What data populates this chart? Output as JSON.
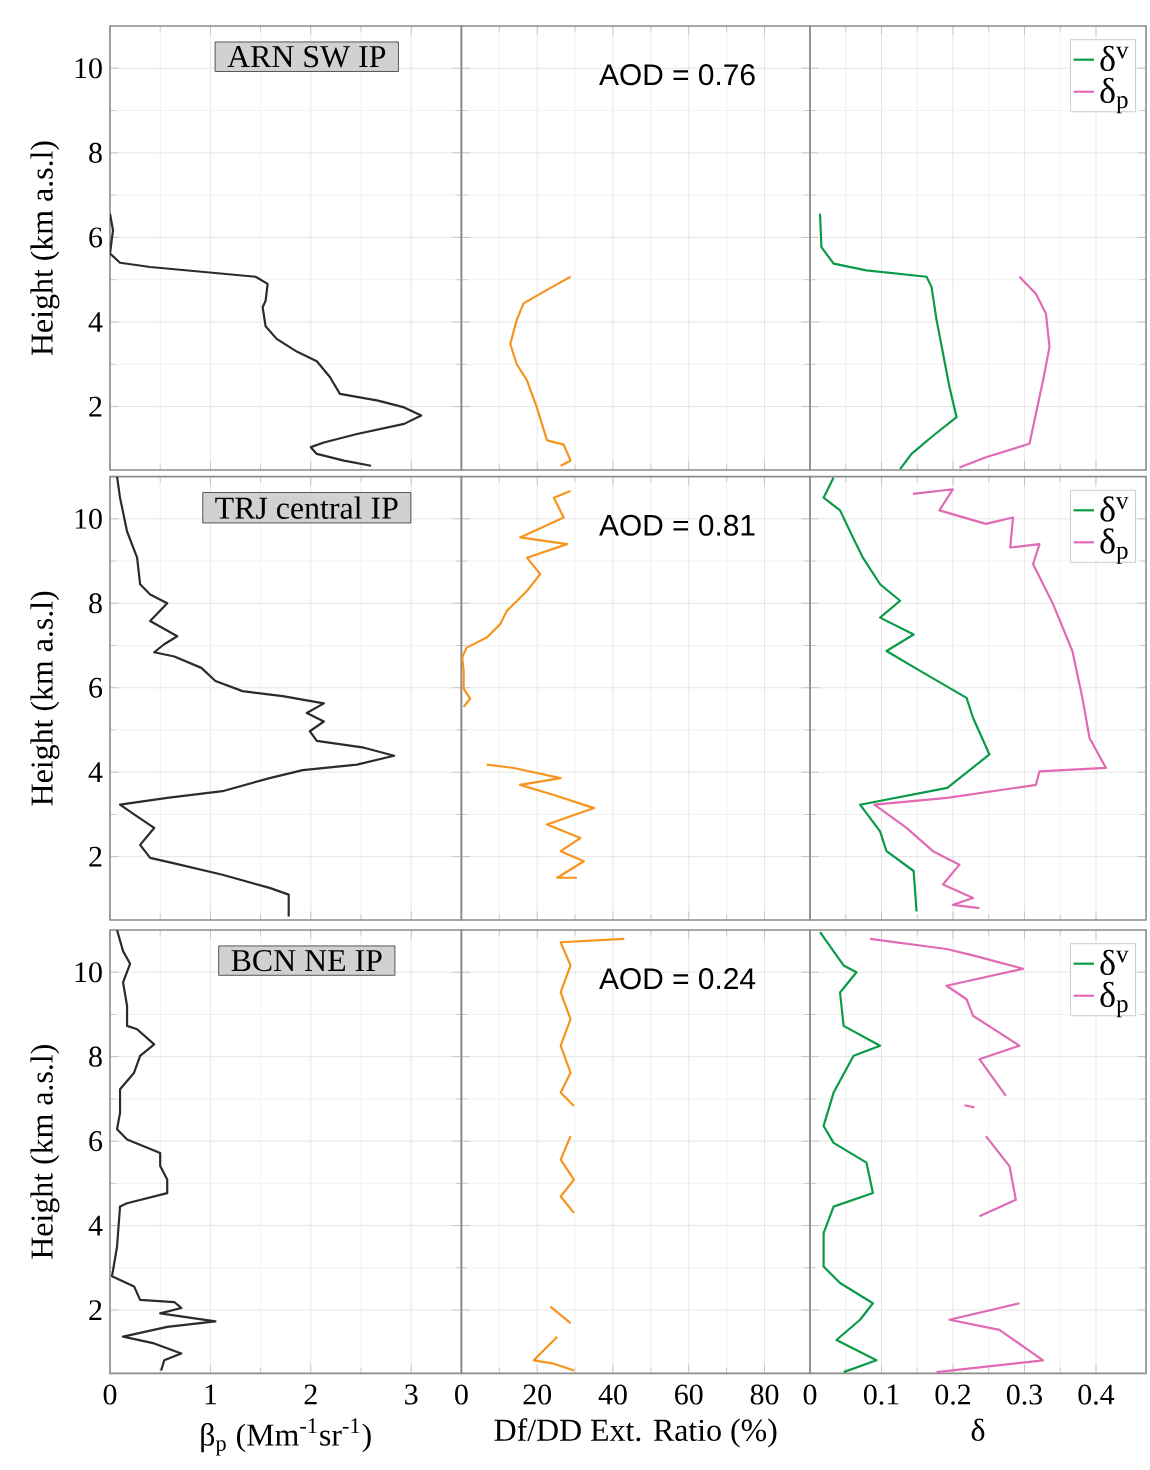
{
  "chart_data": [
    {
      "type": "line",
      "title": "ARN SW IP",
      "ylabel": "Height (km a.s.l)",
      "xlim": [
        0,
        3.5
      ],
      "xticks": [
        0,
        1,
        2,
        3
      ],
      "ylim": [
        0.5,
        11
      ],
      "yticks": [
        2,
        4,
        6,
        8,
        10
      ],
      "grid": true,
      "tick_labels": "y",
      "series": [
        {
          "color": "#2b2b2b",
          "x": [
            0,
            0.03,
            0,
            0.1,
            0.4,
            1.45,
            1.57,
            1.55,
            1.52,
            1.55,
            1.66,
            1.86,
            2.06,
            2.19,
            2.29,
            2.67,
            2.93,
            3.1,
            2.93,
            2.46,
            2.13,
            2.0,
            2.06,
            2.33,
            2.6
          ],
          "values": [
            6.56,
            6.17,
            5.62,
            5.4,
            5.3,
            5.07,
            4.9,
            4.5,
            4.35,
            3.9,
            3.6,
            3.3,
            3.07,
            2.7,
            2.3,
            2.14,
            1.98,
            1.79,
            1.59,
            1.35,
            1.15,
            1.04,
            0.88,
            0.72,
            0.6
          ]
        }
      ]
    },
    {
      "type": "line",
      "annotations": [
        "AOD = 0.76"
      ],
      "xlim": [
        0,
        92
      ],
      "xticks": [
        0,
        20,
        40,
        60,
        80
      ],
      "ylim": [
        0.5,
        11
      ],
      "yticks": [
        2,
        4,
        6,
        8,
        10
      ],
      "grid": true,
      "tick_labels": false,
      "series": [
        {
          "color": "#f7941d",
          "x": [
            28.8,
            22.6,
            16.4,
            14.6,
            12.9,
            14.6,
            17.3,
            19.9,
            22.6,
            27.0,
            28.8,
            26.2
          ],
          "values": [
            5.07,
            4.76,
            4.44,
            4.05,
            3.48,
            3.0,
            2.62,
            1.98,
            1.2,
            1.1,
            0.72,
            0.6
          ]
        }
      ]
    },
    {
      "type": "line",
      "legend": "top right",
      "xlim": [
        0,
        0.47
      ],
      "xticks": [
        0,
        0.1,
        0.2,
        0.3,
        0.4
      ],
      "ylim": [
        0.5,
        11
      ],
      "yticks": [
        2,
        4,
        6,
        8,
        10
      ],
      "grid": true,
      "tick_labels": false,
      "series": [
        {
          "name": "δ$^{v}$",
          "color": "#0a9a48",
          "x": [
            0.014,
            0.016,
            0.033,
            0.079,
            0.163,
            0.17,
            0.177,
            0.186,
            0.195,
            0.205,
            0.17,
            0.142,
            0.126
          ],
          "values": [
            6.56,
            5.77,
            5.38,
            5.22,
            5.07,
            4.83,
            4.05,
            3.26,
            2.47,
            1.75,
            1.28,
            0.88,
            0.52
          ]
        },
        {
          "name": "δ$_{p}$",
          "color": "#e06ab4",
          "x": [
            0.293,
            0.316,
            0.33,
            0.335,
            0.326,
            0.316,
            0.307,
            0.246,
            0.209
          ],
          "values": [
            5.07,
            4.67,
            4.2,
            3.41,
            2.62,
            1.83,
            1.12,
            0.8,
            0.56
          ]
        }
      ]
    },
    {
      "type": "line",
      "title": "TRJ central IP",
      "ylabel": "Height (km a.s.l)",
      "xlim": [
        0,
        3.5
      ],
      "xticks": [
        0,
        1,
        2,
        3
      ],
      "ylim": [
        0.5,
        11
      ],
      "yticks": [
        2,
        4,
        6,
        8,
        10
      ],
      "grid": true,
      "tick_labels": "y",
      "series": [
        {
          "color": "#2b2b2b",
          "x": [
            0.07,
            0.1,
            0.17,
            0.27,
            0.3,
            0.4,
            0.57,
            0.4,
            0.67,
            0.54,
            0.44,
            0.64,
            0.91,
            1.05,
            1.32,
            1.72,
            2.13,
            1.96,
            2.13,
            1.99,
            2.06,
            2.53,
            2.83,
            2.46,
            1.92,
            1.59,
            1.12,
            0.57,
            0.1,
            0.24,
            0.44,
            0.3,
            0.4,
            0.64,
            1.12,
            1.59,
            1.78,
            1.78
          ],
          "values": [
            11.0,
            10.5,
            9.7,
            9.08,
            8.45,
            8.21,
            8.0,
            7.58,
            7.22,
            7.03,
            6.84,
            6.74,
            6.47,
            6.16,
            5.92,
            5.8,
            5.63,
            5.4,
            5.2,
            4.97,
            4.74,
            4.58,
            4.39,
            4.18,
            4.05,
            3.86,
            3.55,
            3.39,
            3.23,
            3.0,
            2.68,
            2.28,
            1.97,
            1.84,
            1.57,
            1.26,
            1.1,
            0.58
          ]
        }
      ]
    },
    {
      "type": "line",
      "annotations": [
        "AOD = 0.81"
      ],
      "xlim": [
        0,
        92
      ],
      "xticks": [
        0,
        20,
        40,
        60,
        80
      ],
      "ylim": [
        0.5,
        11
      ],
      "yticks": [
        2,
        4,
        6,
        8,
        10
      ],
      "grid": true,
      "tick_labels": false,
      "series": [
        {
          "color": "#f7941d",
          "x": [
            28.8,
            24.4,
            27.0,
            15.5,
            27.9,
            17.3,
            20.8,
            17.3,
            12.0,
            10.2,
            6.7,
            1.4,
            0.2,
            0.6,
            0.6,
            2.3,
            0.6,
            null,
            6.7,
            13.8,
            26.2,
            15.5,
            24.4,
            35.0,
            22.6,
            31.4,
            26.2,
            32.3,
            25.3,
            30.5
          ],
          "values": [
            10.66,
            10.5,
            10.03,
            9.56,
            9.4,
            9.08,
            8.69,
            8.29,
            7.82,
            7.5,
            7.19,
            6.95,
            6.72,
            6.4,
            5.98,
            5.74,
            5.55,
            null,
            4.18,
            4.1,
            3.86,
            3.7,
            3.46,
            3.15,
            2.76,
            2.44,
            2.13,
            1.89,
            1.5,
            1.5
          ]
        }
      ]
    },
    {
      "type": "line",
      "legend": "top right",
      "xlim": [
        0,
        0.47
      ],
      "xticks": [
        0,
        0.1,
        0.2,
        0.3,
        0.4
      ],
      "ylim": [
        0.5,
        11
      ],
      "yticks": [
        2,
        4,
        6,
        8,
        10
      ],
      "grid": true,
      "tick_labels": false,
      "series": [
        {
          "name": "δ$^{v}$",
          "color": "#0a9a48",
          "x": [
            0.033,
            0.019,
            0.042,
            0.06,
            0.074,
            0.098,
            0.126,
            0.098,
            0.145,
            0.107,
            0.154,
            0.219,
            0.228,
            0.251,
            0.192,
            0.07,
            0.098,
            0.107,
            0.145,
            0.149
          ],
          "values": [
            10.98,
            10.5,
            10.2,
            9.56,
            9.08,
            8.45,
            8.06,
            7.66,
            7.26,
            6.87,
            6.4,
            5.76,
            5.29,
            4.42,
            3.63,
            3.23,
            2.6,
            2.13,
            1.66,
            0.7
          ]
        },
        {
          "name": "δ$_{p}$",
          "color": "#e06ab4",
          "x": [
            0.144,
            0.2,
            0.181,
            0.246,
            0.284,
            0.28,
            0.321,
            0.312,
            0.34,
            0.367,
            0.381,
            0.391,
            0.414,
            0.321,
            0.316,
            0.192,
            0.09,
            0.135,
            0.172,
            0.209,
            0.186,
            0.228,
            0.2,
            0.237
          ],
          "values": [
            10.59,
            10.7,
            10.2,
            9.88,
            10.03,
            9.32,
            9.4,
            8.93,
            7.98,
            6.87,
            5.76,
            4.81,
            4.1,
            4.02,
            3.7,
            3.39,
            3.23,
            2.68,
            2.13,
            1.81,
            1.34,
            1.02,
            0.86,
            0.78
          ]
        }
      ]
    },
    {
      "type": "line",
      "title": "BCN NE IP",
      "ylabel": "Height (km a.s.l)",
      "xlabel": "β$_{p}$ (Mm$^{-1}$sr$^{-1}$)",
      "xlim": [
        0,
        3.5
      ],
      "xticks": [
        0,
        1,
        2,
        3
      ],
      "ylim": [
        0.5,
        11
      ],
      "yticks": [
        2,
        4,
        6,
        8,
        10
      ],
      "grid": true,
      "series": [
        {
          "color": "#2b2b2b",
          "x": [
            0.07,
            0.13,
            0.2,
            0.13,
            0.17,
            0.17,
            0.27,
            0.44,
            0.3,
            0.24,
            0.1,
            0.1,
            0.07,
            0.17,
            0.5,
            0.5,
            0.57,
            0.57,
            0.17,
            0.1,
            0.07,
            0.02,
            0.24,
            0.3,
            0.64,
            0.71,
            0.5,
            1.05,
            0.57,
            0.13,
            0.44,
            0.71,
            0.54,
            0.51
          ],
          "values": [
            11.0,
            10.5,
            10.2,
            9.76,
            9.2,
            8.73,
            8.65,
            8.29,
            8.02,
            7.62,
            7.23,
            6.67,
            6.28,
            6.04,
            5.72,
            5.41,
            5.09,
            4.77,
            4.53,
            4.45,
            3.5,
            2.8,
            2.56,
            2.24,
            2.19,
            2.05,
            1.92,
            1.73,
            1.6,
            1.37,
            1.21,
            0.97,
            0.81,
            0.57
          ]
        }
      ]
    },
    {
      "type": "line",
      "annotations": [
        "AOD = 0.24"
      ],
      "xlabel": "Df/DD Ext. Ratio (%)",
      "xlim": [
        0,
        92
      ],
      "xticks": [
        0,
        20,
        40,
        60,
        80
      ],
      "ylim": [
        0.5,
        11
      ],
      "yticks": [
        2,
        4,
        6,
        8,
        10
      ],
      "grid": true,
      "tick_labels": "x",
      "series": [
        {
          "color": "#f7941d",
          "x": [
            43.0,
            26.2,
            28.8,
            26.2,
            28.8,
            26.2,
            28.8,
            26.2,
            29.7,
            null,
            28.8,
            26.2,
            29.7,
            26.2,
            29.7,
            null,
            23.5,
            28.8,
            null,
            25.3,
            19.1,
            24.4,
            29.7
          ],
          "values": [
            10.79,
            10.71,
            10.16,
            9.52,
            8.89,
            8.26,
            7.62,
            7.15,
            6.83,
            null,
            6.12,
            5.56,
            5.09,
            4.69,
            4.3,
            null,
            2.08,
            1.69,
            null,
            1.37,
            0.81,
            0.73,
            0.57
          ]
        }
      ]
    },
    {
      "type": "line",
      "legend": "top right",
      "xlabel": "δ",
      "xlim": [
        0,
        0.47
      ],
      "xticks": [
        0,
        0.1,
        0.2,
        0.3,
        0.4
      ],
      "ylim": [
        0.5,
        11
      ],
      "yticks": [
        2,
        4,
        6,
        8,
        10
      ],
      "grid": true,
      "tick_labels": "x",
      "series": [
        {
          "name": "δ$^{v}$",
          "color": "#0a9a48",
          "x": [
            0.014,
            0.047,
            0.065,
            0.042,
            0.047,
            0.098,
            0.061,
            0.033,
            0.019,
            0.033,
            0.079,
            0.088,
            0.033,
            0.019,
            0.019,
            0.042,
            0.088,
            0.07,
            0.037,
            0.093,
            0.047
          ],
          "values": [
            10.95,
            10.16,
            10.0,
            9.52,
            8.73,
            8.26,
            8.02,
            7.15,
            6.36,
            5.96,
            5.49,
            4.77,
            4.45,
            3.82,
            3.03,
            2.64,
            2.16,
            1.77,
            1.29,
            0.81,
            0.53
          ]
        },
        {
          "name": "δ$_{p}$",
          "color": "#e06ab4",
          "x": [
            0.084,
            0.191,
            0.228,
            0.298,
            0.191,
            0.219,
            0.228,
            0.293,
            0.237,
            0.274,
            null,
            0.216,
            0.23,
            null,
            0.246,
            0.279,
            0.288,
            0.237,
            null,
            0.293,
            0.195,
            0.265,
            0.326,
            0.177
          ],
          "values": [
            10.79,
            10.55,
            10.4,
            10.08,
            9.68,
            9.36,
            8.97,
            8.26,
            7.94,
            7.07,
            null,
            6.85,
            6.8,
            null,
            6.12,
            5.41,
            4.61,
            4.22,
            null,
            2.16,
            1.77,
            1.53,
            0.81,
            0.53
          ]
        }
      ]
    }
  ]
}
